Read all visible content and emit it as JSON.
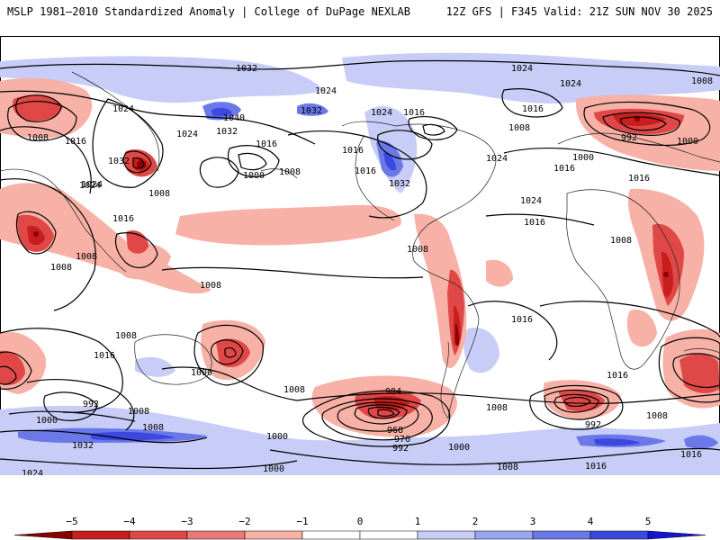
{
  "header": {
    "left_title": "MSLP 1981–2010 Standardized Anomaly | College of DuPage NEXLAB",
    "right_title": "12Z GFS | F345 Valid: 21Z SUN NOV 30 2025"
  },
  "colorbar": {
    "ticks": [
      "−5",
      "−4",
      "−3",
      "−2",
      "−1",
      "0",
      "1",
      "2",
      "3",
      "4",
      "5"
    ],
    "colors": [
      "#8b0000",
      "#c81e1e",
      "#e04848",
      "#ee7878",
      "#f7b1a6",
      "#ffffff",
      "#ffffff",
      "#c7cdf6",
      "#9aa6ef",
      "#6a78e8",
      "#3c48e0",
      "#1414d2"
    ]
  },
  "isobar_labels": [
    "1032",
    "1024",
    "1024",
    "1024",
    "1024",
    "1016",
    "1016",
    "1008",
    "1040",
    "1032",
    "1032",
    "1024",
    "1016",
    "1024",
    "1016",
    "1008",
    "1008",
    "1032",
    "1008",
    "1016",
    "1000",
    "1008",
    "1024",
    "1024",
    "1016",
    "1032",
    "1024",
    "1016",
    "1008",
    "1008",
    "1016",
    "1008",
    "1008",
    "1008",
    "1016",
    "1016",
    "1000",
    "1008",
    "992",
    "1008",
    "1016",
    "1008",
    "1000",
    "984",
    "968",
    "976",
    "992",
    "1000",
    "1008",
    "992",
    "1008",
    "1016",
    "1016",
    "1000",
    "1032",
    "1024",
    "1000",
    "1008",
    "1008",
    "1016",
    "1000",
    "1016",
    "1024",
    "1000",
    "992"
  ],
  "colors": {
    "negative_strong": "#c81e1e",
    "negative_light": "#f7b1a6",
    "positive_light": "#c7cdf6",
    "positive_strong": "#3c48e0",
    "background": "#ffffff",
    "contour": "#000000"
  }
}
